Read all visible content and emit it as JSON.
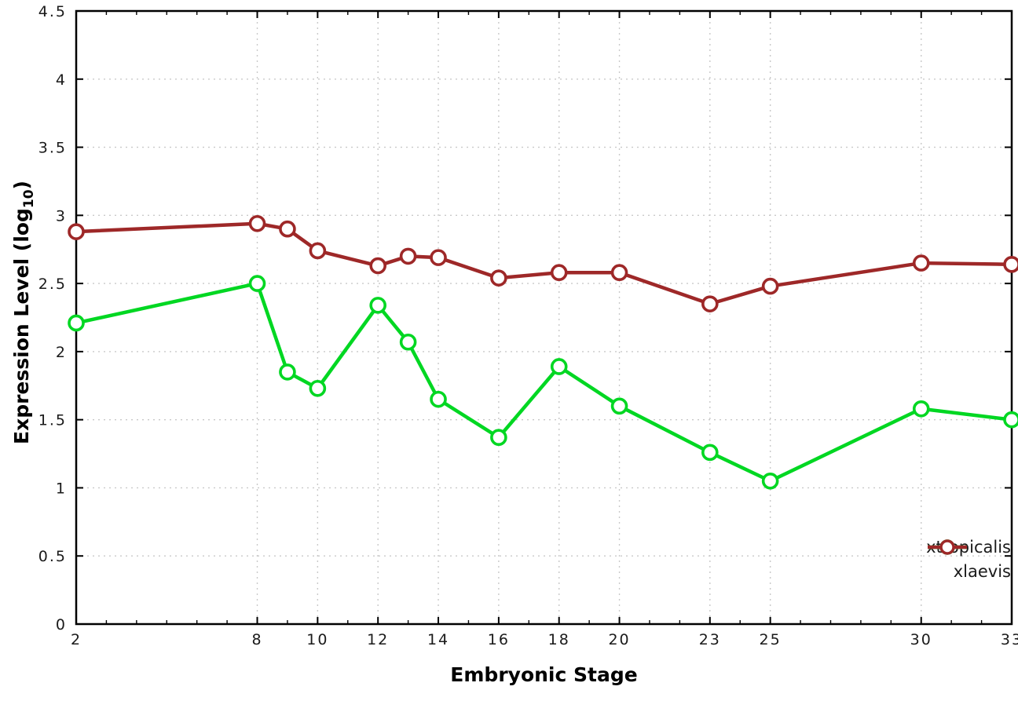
{
  "chart_data": {
    "type": "line",
    "title": "",
    "xlabel": "Embryonic Stage",
    "ylabel_pre": "Expression Level (log",
    "ylabel_sub": "10",
    "ylabel_post": ")",
    "xlim": [
      2,
      33
    ],
    "ylim": [
      0,
      4.5
    ],
    "grid": true,
    "legend_position": "bottom-right",
    "xtick_values": [
      2,
      8,
      10,
      12,
      14,
      16,
      18,
      20,
      23,
      25,
      30,
      33
    ],
    "xtick_labels": [
      "2",
      "8",
      "10",
      "12",
      "14",
      "16",
      "18",
      "20",
      "23",
      "25",
      "30",
      "33"
    ],
    "ytick_values": [
      0,
      0.5,
      1,
      1.5,
      2,
      2.5,
      3,
      3.5,
      4,
      4.5
    ],
    "ytick_labels": [
      "0",
      "0.5",
      "1",
      "1.5",
      "2",
      "2.5",
      "3",
      "3.5",
      "4",
      "4.5"
    ],
    "x": [
      2,
      8,
      9,
      10,
      12,
      13,
      14,
      16,
      18,
      20,
      23,
      25,
      30,
      33
    ],
    "series": [
      {
        "name": "xtropicalis",
        "color": "#00d722",
        "values": [
          2.21,
          2.5,
          1.85,
          1.73,
          2.34,
          2.07,
          1.65,
          1.37,
          1.89,
          1.6,
          1.26,
          1.05,
          1.58,
          1.5
        ]
      },
      {
        "name": "xlaevis",
        "color": "#9e2828",
        "values": [
          2.88,
          2.94,
          2.9,
          2.74,
          2.63,
          2.7,
          2.69,
          2.54,
          2.58,
          2.58,
          2.35,
          2.48,
          2.65,
          2.64
        ]
      }
    ]
  }
}
